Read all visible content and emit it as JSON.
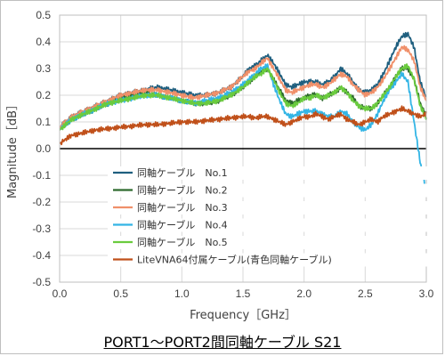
{
  "chart_data": {
    "type": "line",
    "title": "PORT1～PORT2間同軸ケーブル S21",
    "xlabel": "Frequency［GHz］",
    "ylabel": "Magnitude［dB］",
    "xlim": [
      0.0,
      3.0
    ],
    "ylim": [
      -0.5,
      0.5
    ],
    "x_ticks": [
      "0.0",
      "0.5",
      "1.0",
      "1.5",
      "2.0",
      "2.5",
      "3.0"
    ],
    "y_ticks": [
      "0.5",
      "0.4",
      "0.3",
      "0.2",
      "0.1",
      "0.0",
      "-0.1",
      "-0.2",
      "-0.3",
      "-0.4",
      "-0.5"
    ],
    "grid": true,
    "legend_position": "lower-left",
    "x": [
      0.0,
      0.1,
      0.2,
      0.3,
      0.4,
      0.5,
      0.6,
      0.7,
      0.8,
      0.9,
      1.0,
      1.1,
      1.2,
      1.3,
      1.4,
      1.5,
      1.55,
      1.6,
      1.65,
      1.7,
      1.75,
      1.8,
      1.85,
      1.9,
      1.95,
      2.0,
      2.05,
      2.1,
      2.15,
      2.2,
      2.25,
      2.3,
      2.35,
      2.4,
      2.45,
      2.5,
      2.55,
      2.6,
      2.65,
      2.7,
      2.75,
      2.8,
      2.85,
      2.9,
      2.95,
      3.0
    ],
    "series": [
      {
        "name": "同軸ケーブル　No.1",
        "color": "#1f5f7f",
        "values": [
          0.08,
          0.12,
          0.14,
          0.16,
          0.18,
          0.2,
          0.21,
          0.22,
          0.23,
          0.22,
          0.21,
          0.2,
          0.2,
          0.21,
          0.23,
          0.27,
          0.3,
          0.31,
          0.33,
          0.35,
          0.32,
          0.28,
          0.24,
          0.23,
          0.24,
          0.25,
          0.25,
          0.25,
          0.24,
          0.25,
          0.27,
          0.3,
          0.28,
          0.25,
          0.22,
          0.21,
          0.22,
          0.24,
          0.28,
          0.33,
          0.38,
          0.42,
          0.43,
          0.38,
          0.25,
          0.19
        ]
      },
      {
        "name": "同軸ケーブル　No.2",
        "color": "#2d6a2d",
        "values": [
          0.07,
          0.11,
          0.13,
          0.15,
          0.17,
          0.19,
          0.2,
          0.21,
          0.2,
          0.19,
          0.18,
          0.17,
          0.17,
          0.18,
          0.2,
          0.23,
          0.25,
          0.27,
          0.29,
          0.3,
          0.26,
          0.22,
          0.18,
          0.17,
          0.18,
          0.19,
          0.2,
          0.2,
          0.19,
          0.2,
          0.21,
          0.23,
          0.21,
          0.19,
          0.16,
          0.15,
          0.15,
          0.17,
          0.2,
          0.23,
          0.27,
          0.3,
          0.3,
          0.26,
          0.17,
          0.12
        ]
      },
      {
        "name": "同軸ケーブル　No.3",
        "color": "#f0906a",
        "values": [
          0.08,
          0.12,
          0.14,
          0.16,
          0.18,
          0.2,
          0.21,
          0.22,
          0.22,
          0.21,
          0.2,
          0.19,
          0.2,
          0.21,
          0.23,
          0.27,
          0.29,
          0.3,
          0.32,
          0.34,
          0.3,
          0.26,
          0.22,
          0.21,
          0.22,
          0.23,
          0.24,
          0.24,
          0.23,
          0.24,
          0.26,
          0.28,
          0.27,
          0.24,
          0.22,
          0.2,
          0.21,
          0.23,
          0.26,
          0.3,
          0.34,
          0.38,
          0.37,
          0.33,
          0.23,
          0.18
        ]
      },
      {
        "name": "同軸ケーブル　No.4",
        "color": "#33b5e5",
        "values": [
          0.07,
          0.11,
          0.13,
          0.15,
          0.17,
          0.18,
          0.19,
          0.2,
          0.2,
          0.19,
          0.18,
          0.17,
          0.18,
          0.19,
          0.21,
          0.24,
          0.26,
          0.28,
          0.3,
          0.31,
          0.24,
          0.18,
          0.13,
          0.12,
          0.13,
          0.14,
          0.14,
          0.14,
          0.13,
          0.12,
          0.12,
          0.14,
          0.13,
          0.1,
          0.08,
          0.07,
          0.09,
          0.13,
          0.18,
          0.22,
          0.25,
          0.28,
          0.25,
          0.1,
          -0.05,
          -0.16
        ]
      },
      {
        "name": "同軸ケーブル　No.5",
        "color": "#6acb3e",
        "values": [
          0.07,
          0.11,
          0.13,
          0.15,
          0.17,
          0.18,
          0.19,
          0.2,
          0.2,
          0.19,
          0.18,
          0.17,
          0.17,
          0.18,
          0.2,
          0.23,
          0.25,
          0.27,
          0.28,
          0.3,
          0.26,
          0.21,
          0.17,
          0.16,
          0.17,
          0.19,
          0.19,
          0.2,
          0.19,
          0.2,
          0.21,
          0.23,
          0.21,
          0.18,
          0.16,
          0.15,
          0.15,
          0.17,
          0.2,
          0.23,
          0.27,
          0.3,
          0.31,
          0.26,
          0.16,
          0.11
        ]
      },
      {
        "name": "LiteVNA64付属ケーブル(青色同軸ケーブル)",
        "color": "#c0501a",
        "values": [
          0.02,
          0.05,
          0.06,
          0.07,
          0.075,
          0.08,
          0.085,
          0.09,
          0.09,
          0.095,
          0.1,
          0.1,
          0.105,
          0.11,
          0.115,
          0.12,
          0.12,
          0.115,
          0.12,
          0.12,
          0.11,
          0.1,
          0.09,
          0.1,
          0.11,
          0.12,
          0.12,
          0.13,
          0.12,
          0.11,
          0.12,
          0.13,
          0.11,
          0.1,
          0.09,
          0.1,
          0.11,
          0.1,
          0.12,
          0.13,
          0.14,
          0.15,
          0.14,
          0.13,
          0.12,
          0.13
        ]
      }
    ]
  }
}
